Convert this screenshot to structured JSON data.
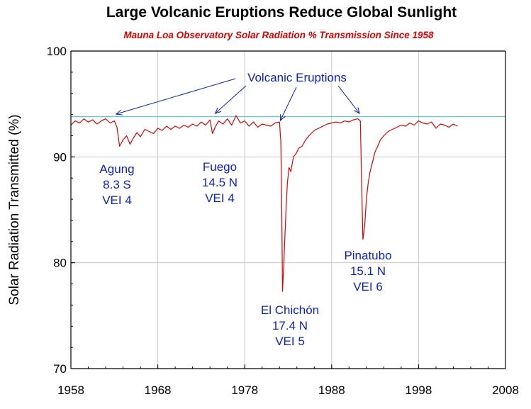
{
  "colors": {
    "series": "#e00000",
    "reference": "#4fd0d0",
    "annotation": "#0a1fd0",
    "subtitle": "#e00000",
    "grid": "#c8c8c8",
    "axis": "#000000"
  },
  "chart_data": {
    "type": "line",
    "title": "Large Volcanic Eruptions Reduce Global Sunlight",
    "subtitle": "Mauna Loa Observatory Solar Radiation % Transmission Since 1958",
    "xlabel": "",
    "ylabel": "Solar Radiation Transmitted (%)",
    "xlim": [
      1958,
      2008
    ],
    "ylim": [
      70,
      100
    ],
    "xticks": [
      "1958",
      "1968",
      "1978",
      "1988",
      "1998",
      "2008"
    ],
    "yticks": [
      "70",
      "80",
      "90",
      "100"
    ],
    "grid": true,
    "reference_line": {
      "y": 93.8
    },
    "series": [
      {
        "x": [
          1958.0,
          1958.5,
          1959.0,
          1959.5,
          1960.0,
          1960.5,
          1961.0,
          1961.5,
          1962.0,
          1962.5,
          1963.0,
          1963.3,
          1963.6,
          1964.0,
          1964.4,
          1964.8,
          1965.2,
          1965.6,
          1966.0,
          1966.5,
          1967.0,
          1967.5,
          1968.0,
          1968.5,
          1969.0,
          1969.5,
          1970.0,
          1970.5,
          1971.0,
          1971.5,
          1972.0,
          1972.5,
          1973.0,
          1973.5,
          1974.0,
          1974.3,
          1974.6,
          1975.0,
          1975.5,
          1976.0,
          1976.5,
          1977.0,
          1977.5,
          1978.0,
          1978.5,
          1979.0,
          1979.5,
          1980.0,
          1980.5,
          1981.0,
          1981.5,
          1982.0,
          1982.15,
          1982.25,
          1982.35,
          1982.5,
          1982.7,
          1982.9,
          1983.1,
          1983.3,
          1983.6,
          1983.9,
          1984.2,
          1984.6,
          1985.0,
          1985.5,
          1986.0,
          1986.5,
          1987.0,
          1987.5,
          1988.0,
          1988.5,
          1989.0,
          1989.5,
          1990.0,
          1990.5,
          1991.0,
          1991.3,
          1991.45,
          1991.6,
          1991.8,
          1992.0,
          1992.2,
          1992.4,
          1992.7,
          1993.0,
          1993.3,
          1993.6,
          1994.0,
          1994.5,
          1995.0,
          1995.5,
          1996.0,
          1996.5,
          1997.0,
          1997.5,
          1998.0,
          1998.5,
          1999.0,
          1999.5,
          2000.0,
          2000.5,
          2001.0,
          2001.5,
          2002.0,
          2002.5
        ],
        "y": [
          93.0,
          93.4,
          93.2,
          93.6,
          93.3,
          93.5,
          93.1,
          93.4,
          93.6,
          93.2,
          93.4,
          92.8,
          91.0,
          91.6,
          92.0,
          91.2,
          91.8,
          92.3,
          91.9,
          92.6,
          92.4,
          92.2,
          92.7,
          92.5,
          92.9,
          92.6,
          92.9,
          92.7,
          93.0,
          92.8,
          93.1,
          92.9,
          93.3,
          93.0,
          93.5,
          92.2,
          92.8,
          93.4,
          93.1,
          93.6,
          93.0,
          93.9,
          93.2,
          93.4,
          92.9,
          93.3,
          92.8,
          93.1,
          93.0,
          92.9,
          93.2,
          93.3,
          91.5,
          86.0,
          77.3,
          80.0,
          84.0,
          87.5,
          89.0,
          88.6,
          90.0,
          90.3,
          90.8,
          91.0,
          91.6,
          92.1,
          92.5,
          92.7,
          92.9,
          93.1,
          93.2,
          93.3,
          93.2,
          93.4,
          93.3,
          93.5,
          93.6,
          93.4,
          87.5,
          82.2,
          83.5,
          86.0,
          87.5,
          88.5,
          89.5,
          90.5,
          91.0,
          91.6,
          92.0,
          92.4,
          92.6,
          92.8,
          93.0,
          92.9,
          93.2,
          93.0,
          93.4,
          93.2,
          93.1,
          93.3,
          92.7,
          93.1,
          93.0,
          92.8,
          93.1,
          92.9
        ]
      }
    ],
    "annotations": [
      {
        "id": "eruptions",
        "lines": [
          "Volcanic Eruptions"
        ]
      },
      {
        "id": "agung",
        "lines": [
          "Agung",
          "8.3 S",
          "VEI  4"
        ]
      },
      {
        "id": "fuego",
        "lines": [
          "Fuego",
          "14.5 N",
          "VEI  4"
        ]
      },
      {
        "id": "elchichon",
        "lines": [
          "El Chichón",
          "17.4 N",
          "VEI  5"
        ]
      },
      {
        "id": "pinatubo",
        "lines": [
          "Pinatubo",
          "15.1 N",
          "VEI  6"
        ]
      }
    ]
  }
}
